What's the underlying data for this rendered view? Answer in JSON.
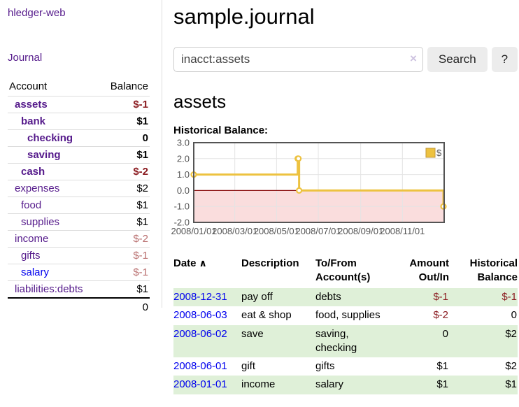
{
  "app": {
    "brand": "hledger-web",
    "nav_journal": "Journal"
  },
  "icons": {
    "sort_asc": "∧",
    "clear": "×"
  },
  "colors": {
    "link_purple": "#551a8b",
    "link_blue": "#0000ee",
    "negative_strong": "#8b1c21",
    "negative_soft": "#b96f6f",
    "row_highlight_green": "#dff0d8",
    "chart_line_gold": "#edc240"
  },
  "sidebar": {
    "headers": {
      "account": "Account",
      "balance": "Balance"
    },
    "rows": [
      {
        "account": "assets",
        "balance": "$-1"
      },
      {
        "account": "bank",
        "balance": "$1"
      },
      {
        "account": "checking",
        "balance": "0"
      },
      {
        "account": "saving",
        "balance": "$1"
      },
      {
        "account": "cash",
        "balance": "$-2"
      },
      {
        "account": "expenses",
        "balance": "$2"
      },
      {
        "account": "food",
        "balance": "$1"
      },
      {
        "account": "supplies",
        "balance": "$1"
      },
      {
        "account": "income",
        "balance": "$-2"
      },
      {
        "account": "gifts",
        "balance": "$-1"
      },
      {
        "account": "salary",
        "balance": "$-1"
      },
      {
        "account": "liabilities:debts",
        "balance": "$1"
      }
    ],
    "total": "0"
  },
  "main": {
    "title": "sample.journal",
    "search": {
      "value": "inacct:assets",
      "button": "Search",
      "help": "?"
    },
    "account_heading": "assets",
    "chart_label": "Historical Balance:"
  },
  "chart_data": {
    "type": "line",
    "style": "step",
    "title": "Historical Balance:",
    "series": [
      {
        "name": "$",
        "color": "#edc240",
        "points": [
          [
            "2008-01-01",
            1
          ],
          [
            "2008-06-01",
            2
          ],
          [
            "2008-06-02",
            2
          ],
          [
            "2008-06-03",
            0
          ],
          [
            "2008-12-31",
            -1
          ]
        ]
      }
    ],
    "x_ticks": [
      "2008/01/01",
      "2008/03/01",
      "2008/05/01",
      "2008/07/01",
      "2008/09/01",
      "2008/11/01"
    ],
    "y_ticks": [
      3,
      2,
      1,
      0,
      -1,
      -2
    ],
    "ylim": [
      -2,
      3
    ],
    "xlim": [
      "2008-01-01",
      "2009-01-01"
    ],
    "grid": true,
    "legend": {
      "position": "top-right",
      "label": "$"
    },
    "colors": {
      "negative_region": "#fadddd",
      "zero_line": "#8b1111"
    }
  },
  "transactions": {
    "headers": {
      "date": "Date",
      "description": "Description",
      "accounts": "To/From Account(s)",
      "amount": "Amount Out/In",
      "balance": "Historical Balance"
    },
    "rows": [
      {
        "date": "2008-12-31",
        "description": "pay off",
        "accounts": "debts",
        "amount": "$-1",
        "balance": "$-1"
      },
      {
        "date": "2008-06-03",
        "description": "eat & shop",
        "accounts": "food, supplies",
        "amount": "$-2",
        "balance": "0"
      },
      {
        "date": "2008-06-02",
        "description": "save",
        "accounts": "saving, checking",
        "amount": "0",
        "balance": "$2"
      },
      {
        "date": "2008-06-01",
        "description": "gift",
        "accounts": "gifts",
        "amount": "$1",
        "balance": "$2"
      },
      {
        "date": "2008-01-01",
        "description": "income",
        "accounts": "salary",
        "amount": "$1",
        "balance": "$1"
      }
    ]
  }
}
